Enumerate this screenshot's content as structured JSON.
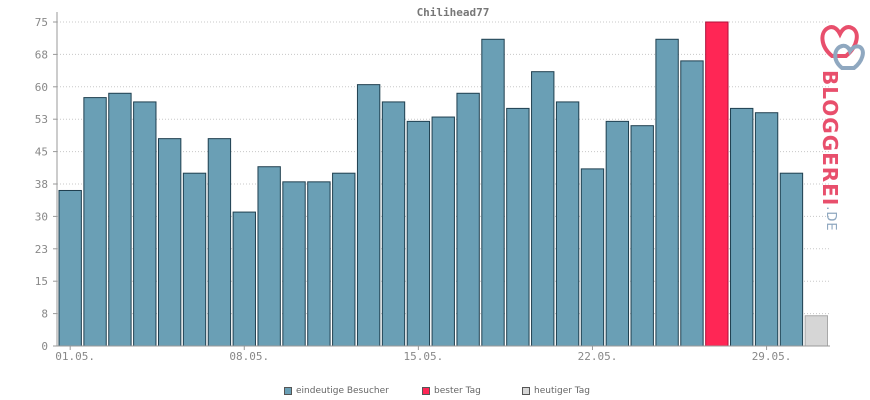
{
  "chart_data": {
    "type": "bar",
    "title": "Chilihead77",
    "y_ticks": [
      "0",
      "8",
      "15",
      "23",
      "30",
      "38",
      "45",
      "53",
      "60",
      "68",
      "75"
    ],
    "ylim": [
      0,
      75
    ],
    "x_ticks": [
      {
        "label": "01.05.",
        "index": 0
      },
      {
        "label": "08.05.",
        "index": 7
      },
      {
        "label": "15.05.",
        "index": 14
      },
      {
        "label": "22.05.",
        "index": 21
      },
      {
        "label": "29.05.",
        "index": 28
      }
    ],
    "values": [
      36,
      57.5,
      58.5,
      56.5,
      48,
      40,
      48,
      31,
      41.5,
      38,
      38,
      40,
      60.5,
      56.5,
      52,
      53,
      58.5,
      71,
      55,
      63.5,
      56.5,
      41,
      52,
      51,
      71,
      66,
      75,
      55,
      54,
      40,
      7
    ],
    "best_index": 26,
    "today_index": 30,
    "grid": true,
    "legend_position": "bottom",
    "colors": {
      "normal": "#6a9fb5",
      "best": "#ff2655",
      "today": "#d6d6d6",
      "grid": "#c8c8c8",
      "axis": "#999999"
    },
    "legend": [
      {
        "label": "eindeutige Besucher",
        "color": "#6a9fb5"
      },
      {
        "label": "bester Tag",
        "color": "#ff2655"
      },
      {
        "label": "heutiger Tag",
        "color": "#d6d6d6"
      }
    ]
  },
  "logo": {
    "text": "BLOGGEREI",
    "suffix": ".DE"
  }
}
